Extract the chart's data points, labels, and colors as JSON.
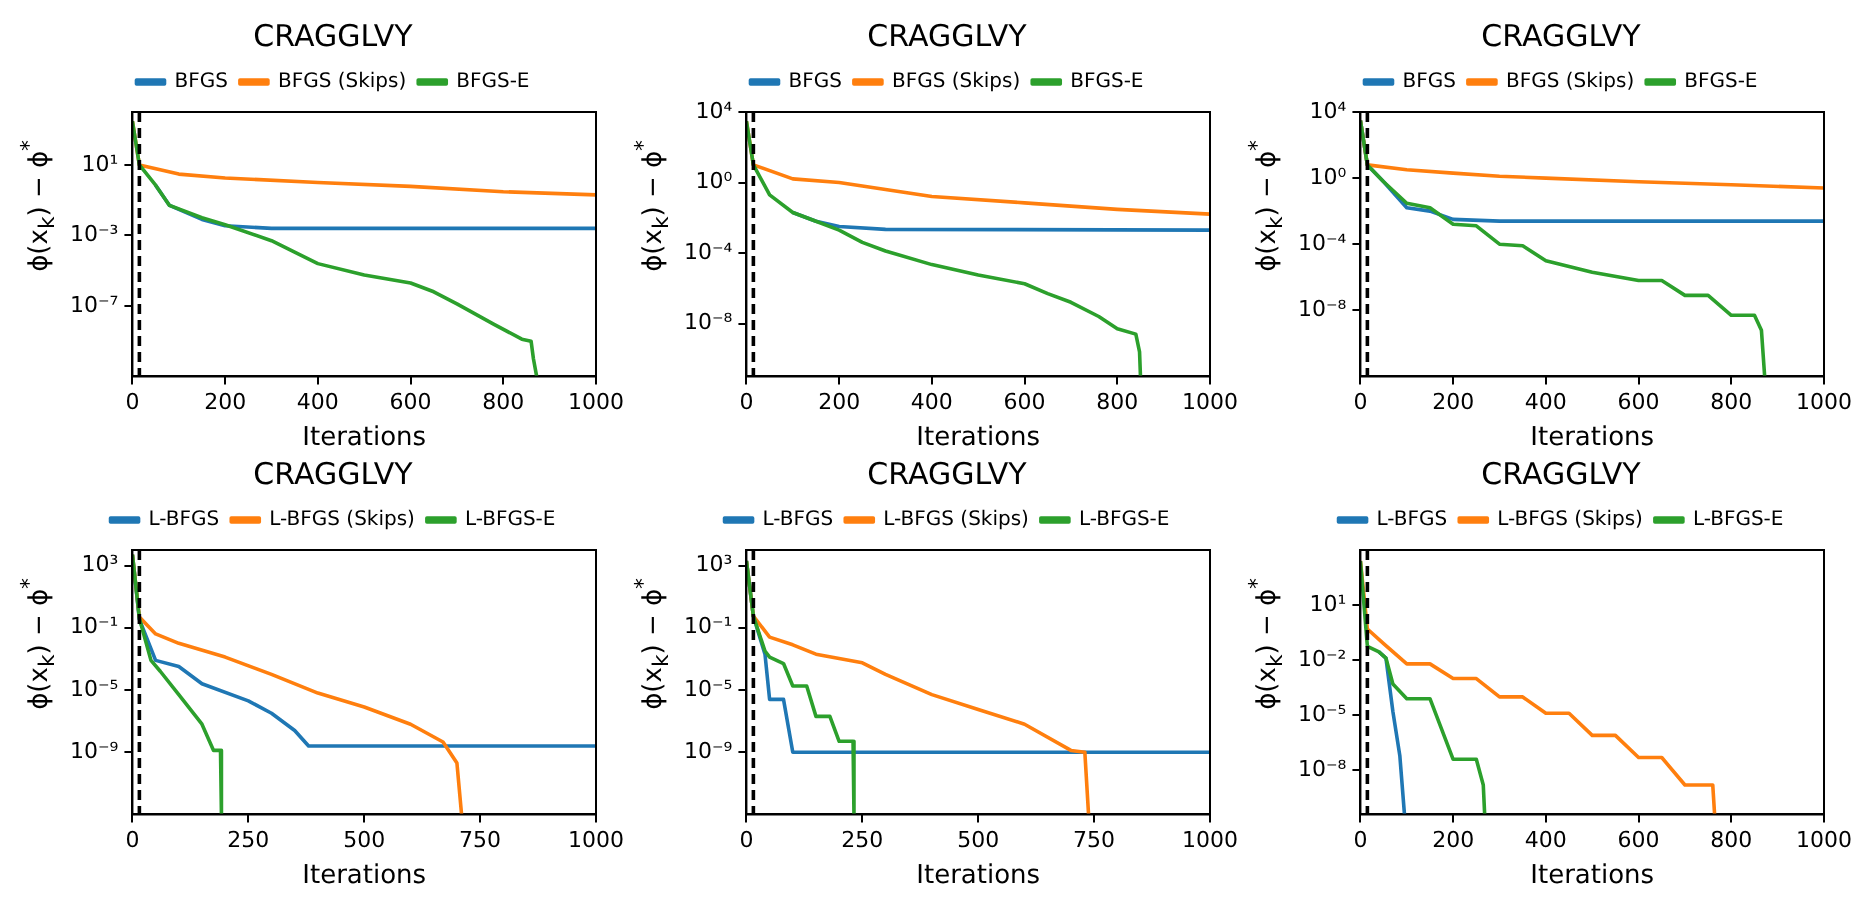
{
  "chart_data": [
    {
      "type": "line",
      "title": "CRAGGLVY",
      "xlabel": "Iterations",
      "ylabel": "ϕ(x$_{k}$) − ϕ$^{*}$",
      "log": "y",
      "legend": "top",
      "xlim": [
        0,
        1000
      ],
      "xticks": [
        0,
        200,
        400,
        600,
        800,
        1000
      ],
      "ylim": [
        1e-11,
        10000
      ],
      "yticks": [
        {
          "value": 10,
          "label": "10¹"
        },
        {
          "value": 0.001,
          "label": "10⁻³"
        },
        {
          "value": 1e-07,
          "label": "10⁻⁷"
        }
      ],
      "ref_lines": [
        {
          "axis": "x",
          "value": 15,
          "color": "#000000",
          "line_style": "dashed"
        }
      ],
      "series": [
        {
          "name": "BFGS",
          "color": "#1f77b4",
          "x": [
            50,
            80,
            150,
            200,
            300,
            1000
          ],
          "values": [
            0.7,
            0.05,
            0.008,
            0.0035,
            0.0025,
            0.0025
          ]
        },
        {
          "name": "BFGS (Skips)",
          "color": "#ff7f0e",
          "x": [
            0,
            15,
            100,
            200,
            400,
            600,
            800,
            1000
          ],
          "values": [
            3000,
            10,
            3,
            1.8,
            1,
            0.6,
            0.3,
            0.2
          ]
        },
        {
          "name": "BFGS-E",
          "color": "#2ca02c",
          "x": [
            0,
            15,
            50,
            80,
            150,
            200,
            300,
            400,
            500,
            600,
            650,
            700,
            780,
            840,
            860,
            865,
            872
          ],
          "values": [
            3000,
            10,
            0.7,
            0.05,
            0.01,
            0.004,
            0.0005,
            2.5e-05,
            5.6e-06,
            2e-06,
            6.3e-07,
            1.3e-07,
            9e-09,
            1.3e-09,
            1e-09,
            1e-10,
            1e-11
          ]
        }
      ]
    },
    {
      "type": "line",
      "title": "CRAGGLVY",
      "xlabel": "Iterations",
      "ylabel": "ϕ(x$_{k}$) − ϕ$^{*}$",
      "log": "y",
      "legend": "top",
      "xlim": [
        0,
        1000
      ],
      "xticks": [
        0,
        200,
        400,
        600,
        800,
        1000
      ],
      "ylim": [
        1e-11,
        10000
      ],
      "yticks": [
        {
          "value": 10000,
          "label": "10⁴"
        },
        {
          "value": 1,
          "label": "10⁰"
        },
        {
          "value": 0.0001,
          "label": "10⁻⁴"
        },
        {
          "value": 1e-08,
          "label": "10⁻⁸"
        }
      ],
      "ref_lines": [
        {
          "axis": "x",
          "value": 15,
          "color": "#000000",
          "line_style": "dashed"
        }
      ],
      "series": [
        {
          "name": "BFGS",
          "color": "#1f77b4",
          "x": [
            100,
            150,
            200,
            300,
            1000
          ],
          "values": [
            0.02,
            0.0063,
            0.0032,
            0.0022,
            0.002
          ]
        },
        {
          "name": "BFGS (Skips)",
          "color": "#ff7f0e",
          "x": [
            0,
            15,
            100,
            200,
            300,
            400,
            600,
            800,
            1000
          ],
          "values": [
            3000,
            10,
            1.6,
            1,
            0.4,
            0.16,
            0.07,
            0.03,
            0.016
          ]
        },
        {
          "name": "BFGS-E",
          "color": "#2ca02c",
          "x": [
            0,
            15,
            50,
            100,
            150,
            200,
            250,
            300,
            400,
            500,
            600,
            650,
            700,
            760,
            800,
            840,
            848,
            850
          ],
          "values": [
            3000,
            10,
            0.2,
            0.02,
            0.0063,
            0.002,
            0.0004,
            0.00013,
            2.2e-05,
            5.6e-06,
            1.8e-06,
            5e-07,
            1.6e-07,
            2.5e-08,
            5e-09,
            2.5e-09,
            2.5e-10,
            1e-11
          ]
        }
      ]
    },
    {
      "type": "line",
      "title": "CRAGGLVY",
      "xlabel": "Iterations",
      "ylabel": "ϕ(x$_{k}$) − ϕ$^{*}$",
      "log": "y",
      "legend": "top",
      "xlim": [
        0,
        1000
      ],
      "xticks": [
        0,
        200,
        400,
        600,
        800,
        1000
      ],
      "ylim": [
        1e-12,
        10000
      ],
      "yticks": [
        {
          "value": 10000,
          "label": "10⁴"
        },
        {
          "value": 1,
          "label": "10⁰"
        },
        {
          "value": 0.0001,
          "label": "10⁻⁴"
        },
        {
          "value": 1e-08,
          "label": "10⁻⁸"
        }
      ],
      "ref_lines": [
        {
          "axis": "x",
          "value": 15,
          "color": "#000000",
          "line_style": "dashed"
        }
      ],
      "series": [
        {
          "name": "BFGS",
          "color": "#1f77b4",
          "x": [
            0,
            15,
            50,
            100,
            150,
            200,
            300,
            1000
          ],
          "values": [
            3000,
            6.3,
            0.6,
            0.016,
            0.01,
            0.0032,
            0.0025,
            0.0025
          ]
        },
        {
          "name": "BFGS (Skips)",
          "color": "#ff7f0e",
          "x": [
            0,
            15,
            100,
            200,
            300,
            400,
            600,
            800,
            1000
          ],
          "values": [
            3000,
            6.3,
            3.2,
            2,
            1.3,
            1,
            0.6,
            0.4,
            0.25
          ]
        },
        {
          "name": "BFGS-E",
          "color": "#2ca02c",
          "x": [
            0,
            15,
            50,
            100,
            150,
            200,
            250,
            300,
            350,
            400,
            500,
            600,
            650,
            700,
            750,
            800,
            850,
            865,
            872
          ],
          "values": [
            3000,
            6.3,
            0.6,
            0.03,
            0.016,
            0.0016,
            0.0013,
            0.0001,
            8e-05,
            1e-05,
            2e-06,
            6.3e-07,
            6.3e-07,
            8e-08,
            8e-08,
            5e-09,
            5e-09,
            6.3e-10,
            1e-12
          ]
        }
      ]
    },
    {
      "type": "line",
      "title": "CRAGGLVY",
      "xlabel": "Iterations",
      "ylabel": "ϕ(x$_{k}$) − ϕ$^{*}$",
      "log": "y",
      "legend": "top",
      "xlim": [
        0,
        1000
      ],
      "xticks": [
        0,
        250,
        500,
        750,
        1000
      ],
      "ylim": [
        1e-13,
        10000
      ],
      "yticks": [
        {
          "value": 1000,
          "label": "10³"
        },
        {
          "value": 0.1,
          "label": "10⁻¹"
        },
        {
          "value": 1e-05,
          "label": "10⁻⁵"
        },
        {
          "value": 1e-09,
          "label": "10⁻⁹"
        }
      ],
      "ref_lines": [
        {
          "axis": "x",
          "value": 15,
          "color": "#000000",
          "line_style": "dashed"
        }
      ],
      "series": [
        {
          "name": "L-BFGS",
          "color": "#1f77b4",
          "x": [
            0,
            15,
            50,
            100,
            150,
            250,
            300,
            350,
            380,
            1000
          ],
          "values": [
            5000,
            0.35,
            0.0008,
            0.00032,
            2.5e-05,
            2e-06,
            3.2e-07,
            2.5e-08,
            2.5e-09,
            2.5e-09
          ]
        },
        {
          "name": "L-BFGS (Skips)",
          "color": "#ff7f0e",
          "x": [
            0,
            15,
            50,
            100,
            200,
            300,
            400,
            500,
            600,
            670,
            700,
            710
          ],
          "values": [
            5000,
            0.5,
            0.04,
            0.01,
            0.0013,
            0.0001,
            6.3e-06,
            8e-07,
            6.3e-08,
            4.5e-09,
            2e-10,
            1e-13
          ]
        },
        {
          "name": "L-BFGS-E",
          "color": "#2ca02c",
          "x": [
            0,
            15,
            40,
            60,
            100,
            150,
            175,
            190,
            192
          ],
          "values": [
            5000,
            0.4,
            0.0008,
            0.00016,
            5e-06,
            6.3e-08,
            1.3e-09,
            1.3e-09,
            1e-13
          ]
        }
      ]
    },
    {
      "type": "line",
      "title": "CRAGGLVY",
      "xlabel": "Iterations",
      "ylabel": "ϕ(x$_{k}$) − ϕ$^{*}$",
      "log": "y",
      "legend": "top",
      "xlim": [
        0,
        1000
      ],
      "xticks": [
        0,
        250,
        500,
        750,
        1000
      ],
      "ylim": [
        1e-13,
        10000
      ],
      "yticks": [
        {
          "value": 1000,
          "label": "10³"
        },
        {
          "value": 0.1,
          "label": "10⁻¹"
        },
        {
          "value": 1e-05,
          "label": "10⁻⁵"
        },
        {
          "value": 1e-09,
          "label": "10⁻⁹"
        }
      ],
      "ref_lines": [
        {
          "axis": "x",
          "value": 15,
          "color": "#000000",
          "line_style": "dashed"
        }
      ],
      "series": [
        {
          "name": "L-BFGS",
          "color": "#1f77b4",
          "x": [
            0,
            15,
            40,
            50,
            80,
            100,
            1000
          ],
          "values": [
            2000,
            0.56,
            0.002,
            2.5e-06,
            2.5e-06,
            1e-09,
            1e-09
          ]
        },
        {
          "name": "L-BFGS (Skips)",
          "color": "#ff7f0e",
          "x": [
            0,
            15,
            50,
            100,
            150,
            250,
            300,
            400,
            500,
            600,
            700,
            730,
            738
          ],
          "values": [
            2000,
            0.56,
            0.025,
            0.008,
            0.002,
            0.00056,
            0.0001,
            5e-06,
            5.6e-07,
            6.3e-08,
            1.3e-09,
            1e-09,
            1e-13
          ]
        },
        {
          "name": "L-BFGS-E",
          "color": "#2ca02c",
          "x": [
            0,
            15,
            40,
            50,
            80,
            100,
            130,
            150,
            180,
            200,
            230,
            232
          ],
          "values": [
            2000,
            0.56,
            0.0032,
            0.0013,
            0.0005,
            1.8e-05,
            1.8e-05,
            2e-07,
            2e-07,
            5e-09,
            5e-09,
            1e-13
          ]
        }
      ]
    },
    {
      "type": "line",
      "title": "CRAGGLVY",
      "xlabel": "Iterations",
      "ylabel": "ϕ(x$_{k}$) − ϕ$^{*}$",
      "log": "y",
      "legend": "top",
      "xlim": [
        0,
        1000
      ],
      "xticks": [
        0,
        200,
        400,
        600,
        800,
        1000
      ],
      "ylim": [
        4e-11,
        10000
      ],
      "yticks": [
        {
          "value": 10,
          "label": "10¹"
        },
        {
          "value": 0.01,
          "label": "10⁻²"
        },
        {
          "value": 1e-05,
          "label": "10⁻⁵"
        },
        {
          "value": 1e-08,
          "label": "10⁻⁸"
        }
      ],
      "ref_lines": [
        {
          "axis": "x",
          "value": 15,
          "color": "#000000",
          "line_style": "dashed"
        }
      ],
      "series": [
        {
          "name": "L-BFGS",
          "color": "#1f77b4",
          "x": [
            40,
            55,
            70,
            85,
            95
          ],
          "values": [
            0.028,
            0.013,
            1.6e-05,
            6.3e-08,
            4e-11
          ]
        },
        {
          "name": "L-BFGS (Skips)",
          "color": "#ff7f0e",
          "x": [
            0,
            15,
            50,
            100,
            150,
            200,
            250,
            300,
            350,
            400,
            450,
            500,
            550,
            600,
            650,
            700,
            760,
            764
          ],
          "values": [
            2500,
            0.5,
            0.08,
            0.0063,
            0.0063,
            0.001,
            0.001,
            0.0001,
            0.0001,
            1.3e-05,
            1.3e-05,
            8e-07,
            8e-07,
            5e-08,
            5e-08,
            1.6e-09,
            1.6e-09,
            4e-11
          ]
        },
        {
          "name": "L-BFGS-E",
          "color": "#2ca02c",
          "x": [
            0,
            15,
            40,
            55,
            70,
            100,
            150,
            200,
            250,
            265,
            268
          ],
          "values": [
            2500,
            0.056,
            0.028,
            0.013,
            0.0005,
            8e-05,
            8e-05,
            4e-08,
            4e-08,
            1.6e-09,
            4e-11
          ]
        }
      ]
    }
  ]
}
